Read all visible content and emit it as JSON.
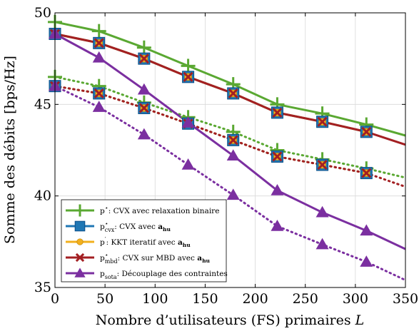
{
  "chart_data": {
    "type": "line",
    "xlabel": "Nombre d’utilisateurs (FS) primaires L",
    "ylabel": "Somme des débits [bps/Hz]",
    "xlim": [
      0,
      350
    ],
    "ylim": [
      35,
      50
    ],
    "xticks": [
      0,
      50,
      100,
      150,
      200,
      250,
      300,
      350
    ],
    "yticks": [
      35,
      40,
      45,
      50
    ],
    "grid": true,
    "legend_position": "bottom-left",
    "marker_x": [
      0,
      44,
      89,
      133,
      178,
      222,
      267,
      311
    ],
    "curve_x": [
      0,
      44,
      89,
      133,
      178,
      222,
      267,
      311,
      350
    ],
    "series": [
      {
        "key": "p_star_cvx_relax",
        "name": "p⋆: CVX avec relaxation binaire",
        "color": "#5aa832",
        "marker": "plus",
        "solid": [
          49.5,
          49.0,
          48.1,
          47.1,
          46.1,
          45.0,
          44.5,
          43.9,
          43.3
        ],
        "dotted": [
          46.5,
          46.0,
          45.1,
          44.3,
          43.5,
          42.5,
          42.0,
          41.5,
          41.0
        ]
      },
      {
        "key": "p_cvx",
        "name": "p⋆cvx: CVX avec ahu",
        "color": "#1f77b4",
        "marker": "square",
        "solid": [
          48.85,
          48.35,
          47.5,
          46.5,
          45.6,
          44.55,
          44.05,
          43.5,
          null
        ],
        "dotted": [
          46.0,
          45.6,
          44.8,
          43.95,
          43.05,
          42.15,
          41.7,
          41.25,
          null
        ]
      },
      {
        "key": "p_kkt",
        "name": "p′: KKT iteratif avec ahu",
        "color": "#f2b01e",
        "marker": "circle",
        "solid": [
          48.85,
          48.35,
          47.5,
          46.5,
          45.6,
          44.55,
          44.05,
          43.5,
          null
        ],
        "dotted": [
          46.0,
          45.6,
          44.8,
          43.95,
          43.05,
          42.15,
          41.7,
          41.25,
          null
        ]
      },
      {
        "key": "p_mbd",
        "name": "p⋆mbd: CVX sur MBD avec ahu",
        "color": "#a31f22",
        "marker": "x",
        "solid": [
          48.85,
          48.35,
          47.5,
          46.5,
          45.6,
          44.55,
          44.05,
          43.5,
          42.8
        ],
        "dotted": [
          46.0,
          45.6,
          44.8,
          43.95,
          43.05,
          42.15,
          41.7,
          41.25,
          40.5
        ]
      },
      {
        "key": "p_sota",
        "name": "psota: Découplage des contraintes",
        "color": "#7b2fa0",
        "marker": "triangle",
        "solid": [
          48.85,
          47.55,
          45.8,
          44.0,
          42.2,
          40.3,
          39.1,
          38.1,
          37.1
        ],
        "dotted": [
          46.0,
          44.85,
          43.35,
          41.7,
          40.05,
          38.35,
          37.35,
          36.4,
          35.4
        ]
      }
    ]
  },
  "legend": {
    "items": [
      {
        "main": "p",
        "sup": "⋆",
        "sub": "",
        "rest": ": CVX avec relaxation binaire",
        "bold": ""
      },
      {
        "main": "p",
        "sup": "⋆",
        "sub": "cvx",
        "rest": ": CVX avec ",
        "bold": "a",
        "bold_sub": "hu"
      },
      {
        "main": "p",
        "sup": "′",
        "sub": "",
        "rest": ": KKT iteratif avec ",
        "bold": "a",
        "bold_sub": "hu"
      },
      {
        "main": "p",
        "sup": "⋆",
        "sub": "mbd",
        "rest": ": CVX sur MBD avec ",
        "bold": "a",
        "bold_sub": "hu"
      },
      {
        "main": "p",
        "sup": "",
        "sub": "sota",
        "rest": ": Découplage des contraintes",
        "bold": ""
      }
    ]
  }
}
